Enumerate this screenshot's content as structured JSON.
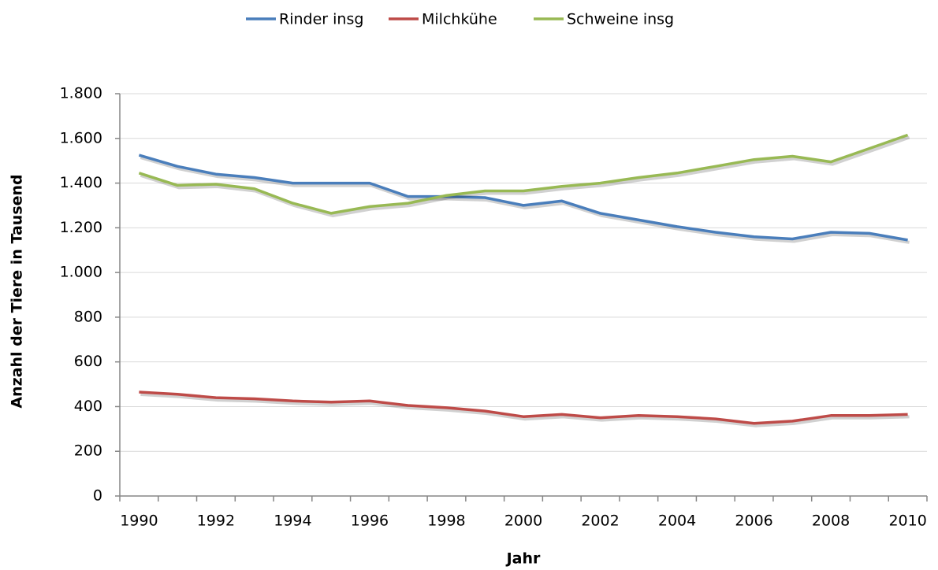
{
  "chart_data": {
    "type": "line",
    "x_label": "Jahr",
    "y_label": "Anzahl der Tiere in Tausend",
    "categories": [
      "1990",
      null,
      "1992",
      null,
      "1994",
      null,
      "1996",
      null,
      "1998",
      null,
      "2000",
      null,
      "2002",
      null,
      "2004",
      null,
      "2006",
      null,
      "2008",
      null,
      "2010"
    ],
    "series": [
      {
        "name": "Rinder insg",
        "color": "#4a7ebb",
        "values": [
          1525,
          1475,
          1440,
          1425,
          1400,
          1400,
          1400,
          1340,
          1340,
          1335,
          1300,
          1320,
          1265,
          1235,
          1205,
          1180,
          1160,
          1150,
          1180,
          1175,
          1145
        ]
      },
      {
        "name": "Milchkühe",
        "color": "#be4b48",
        "values": [
          465,
          455,
          440,
          435,
          425,
          420,
          425,
          405,
          395,
          380,
          355,
          365,
          350,
          360,
          355,
          345,
          325,
          335,
          360,
          360,
          365
        ]
      },
      {
        "name": "Schweine insg",
        "color": "#98b954",
        "values": [
          1445,
          1390,
          1395,
          1375,
          1310,
          1265,
          1295,
          1310,
          1345,
          1365,
          1365,
          1385,
          1400,
          1425,
          1445,
          1475,
          1505,
          1520,
          1495,
          1555,
          1615
        ]
      }
    ],
    "ylim": [
      0,
      1800
    ],
    "yticks": [
      0,
      200,
      400,
      600,
      800,
      {
        "value": 1000,
        "label": "1.000"
      },
      {
        "value": 1200,
        "label": "1.200"
      },
      {
        "value": 1400,
        "label": "1.400"
      },
      {
        "value": 1600,
        "label": "1.600"
      },
      {
        "value": 1800,
        "label": "1.800"
      }
    ],
    "grid": true,
    "legend": "top"
  }
}
